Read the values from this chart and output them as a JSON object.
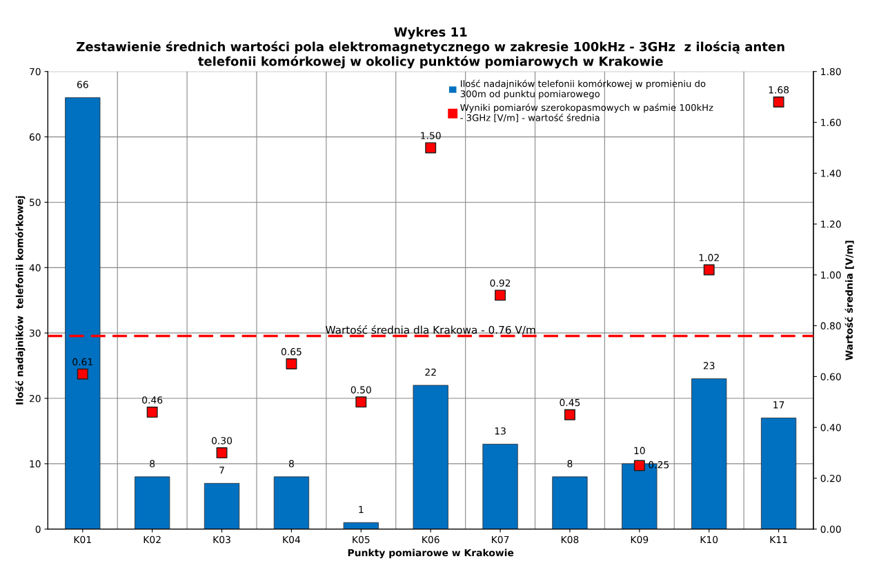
{
  "chart_data": {
    "type": "bar",
    "title": "Wykres 11\nZestawienie średnich wartości pola elektromagnetycznego w zakresie 100kHz - 3GHz  z ilością anten\ntelefonii komórkowej w okolicy punktów pomiarowych w Krakowie",
    "xlabel": "Punkty pomiarowe w Krakowie",
    "ylabel": "Ilość nadajników  telefonii komórkowej",
    "y2label": "Wartość średnia [V/m]",
    "categories": [
      "K01",
      "K02",
      "K03",
      "K04",
      "K05",
      "K06",
      "K07",
      "K08",
      "K09",
      "K10",
      "K11"
    ],
    "series": [
      {
        "name": "Ilość nadajników telefonii komórkowej w promieniu do\n300m od punktu pomiarowego",
        "color": "#0070c0",
        "values": [
          66,
          8,
          7,
          8,
          1,
          22,
          13,
          8,
          10,
          23,
          17
        ],
        "value_labels": [
          "66",
          "8",
          "7",
          "8",
          "1",
          "22",
          "13",
          "8",
          "10",
          "23",
          "17"
        ]
      },
      {
        "name": "Wyniki pomiarów szerokopasmowych w paśmie 100kHz\n- 3GHz [V/m] - wartość średnia",
        "type": "scatter",
        "axis": "y2",
        "marker": "square",
        "color": "#ff0000",
        "values": [
          0.61,
          0.46,
          0.3,
          0.65,
          0.5,
          1.5,
          0.92,
          0.45,
          0.25,
          1.02,
          1.68
        ],
        "value_labels": [
          "0.61",
          "0.46",
          "0.30",
          "0.65",
          "0.50",
          "1.50",
          "0.92",
          "0.45",
          "0.25",
          "1.02",
          "1.68"
        ]
      }
    ],
    "ylim": [
      0,
      70
    ],
    "yticks": [
      0,
      10,
      20,
      30,
      40,
      50,
      60,
      70
    ],
    "y2lim": [
      0,
      1.8
    ],
    "y2ticks": [
      {
        "value": 0,
        "label": "0.00"
      },
      {
        "value": 0.2,
        "label": "0.20"
      },
      {
        "value": 0.4,
        "label": "0.40"
      },
      {
        "value": 0.6,
        "label": "0.60"
      },
      {
        "value": 0.8,
        "label": "0.80"
      },
      {
        "value": 1.0,
        "label": "1.00"
      },
      {
        "value": 1.2,
        "label": "1.20"
      },
      {
        "value": 1.4,
        "label": "1.40"
      },
      {
        "value": 1.6,
        "label": "1.60"
      },
      {
        "value": 1.8,
        "label": "1.80"
      }
    ],
    "ref_lines": [
      {
        "axis": "y2",
        "value": 0.76,
        "label": "Wartość średnia dla Krakowa - 0.76 V/m",
        "color": "#ff0000",
        "line_style": "dashed"
      }
    ],
    "grid": true,
    "legend": "top right"
  }
}
